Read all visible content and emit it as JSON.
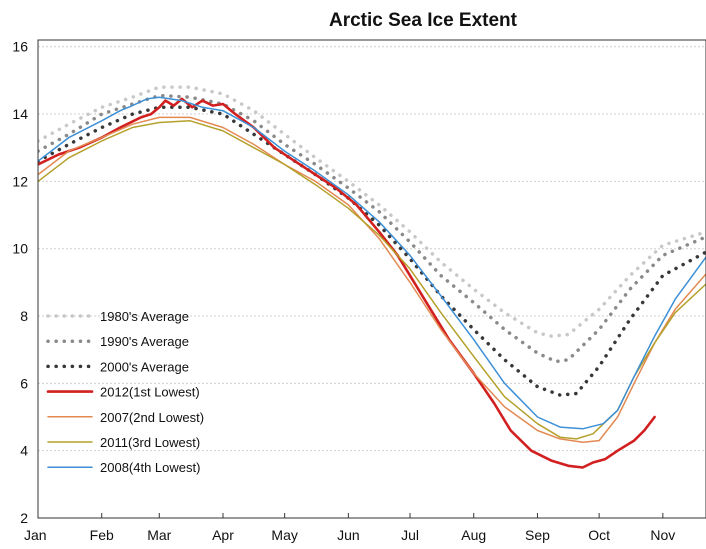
{
  "chart_data": {
    "type": "line",
    "title": "Arctic Sea Ice Extent",
    "xlabel": "",
    "ylabel": "",
    "x_tick_labels": [
      "Jan",
      "Feb",
      "Mar",
      "Apr",
      "May",
      "Jun",
      "Jul",
      "Aug",
      "Sep",
      "Oct",
      "Nov"
    ],
    "y_ticks": [
      2,
      4,
      6,
      8,
      10,
      12,
      14,
      16
    ],
    "ylim": [
      2,
      16.2
    ],
    "xlim_days": [
      0,
      325
    ],
    "grid": "horizontal dotted",
    "legend_position": "bottom-left",
    "series": [
      {
        "name": "1980's Average",
        "color": "#c8c8c8",
        "style": "dotted",
        "width": 3.5,
        "points": [
          [
            0,
            13.2
          ],
          [
            15,
            13.7
          ],
          [
            31,
            14.2
          ],
          [
            46,
            14.5
          ],
          [
            59,
            14.8
          ],
          [
            74,
            14.8
          ],
          [
            90,
            14.6
          ],
          [
            105,
            14.1
          ],
          [
            120,
            13.4
          ],
          [
            135,
            12.7
          ],
          [
            151,
            12.0
          ],
          [
            166,
            11.3
          ],
          [
            181,
            10.5
          ],
          [
            196,
            9.6
          ],
          [
            212,
            8.8
          ],
          [
            227,
            8.1
          ],
          [
            243,
            7.5
          ],
          [
            250,
            7.4
          ],
          [
            258,
            7.45
          ],
          [
            273,
            8.2
          ],
          [
            288,
            9.2
          ],
          [
            304,
            10.1
          ],
          [
            325,
            10.5
          ]
        ]
      },
      {
        "name": "1990's Average",
        "color": "#8a8a8a",
        "style": "dotted",
        "width": 3.5,
        "points": [
          [
            0,
            12.9
          ],
          [
            15,
            13.4
          ],
          [
            31,
            14.0
          ],
          [
            46,
            14.3
          ],
          [
            59,
            14.55
          ],
          [
            74,
            14.5
          ],
          [
            90,
            14.3
          ],
          [
            105,
            13.8
          ],
          [
            120,
            13.1
          ],
          [
            135,
            12.5
          ],
          [
            151,
            11.8
          ],
          [
            166,
            11.1
          ],
          [
            181,
            10.2
          ],
          [
            196,
            9.2
          ],
          [
            212,
            8.4
          ],
          [
            227,
            7.6
          ],
          [
            243,
            6.9
          ],
          [
            252,
            6.65
          ],
          [
            258,
            6.7
          ],
          [
            273,
            7.6
          ],
          [
            288,
            8.8
          ],
          [
            304,
            9.8
          ],
          [
            325,
            10.35
          ]
        ]
      },
      {
        "name": "2000's Average",
        "color": "#383838",
        "style": "dotted",
        "width": 3.5,
        "points": [
          [
            0,
            12.6
          ],
          [
            15,
            13.1
          ],
          [
            31,
            13.6
          ],
          [
            46,
            14.0
          ],
          [
            59,
            14.2
          ],
          [
            74,
            14.2
          ],
          [
            90,
            14.0
          ],
          [
            105,
            13.4
          ],
          [
            120,
            12.8
          ],
          [
            135,
            12.2
          ],
          [
            151,
            11.5
          ],
          [
            166,
            10.7
          ],
          [
            181,
            9.7
          ],
          [
            196,
            8.6
          ],
          [
            212,
            7.6
          ],
          [
            227,
            6.7
          ],
          [
            243,
            5.9
          ],
          [
            254,
            5.65
          ],
          [
            262,
            5.7
          ],
          [
            273,
            6.5
          ],
          [
            288,
            7.9
          ],
          [
            304,
            9.2
          ],
          [
            325,
            9.9
          ]
        ]
      },
      {
        "name": "2012(1st Lowest)",
        "color": "#d21f1f",
        "style": "solid",
        "width": 2.6,
        "points": [
          [
            0,
            12.5
          ],
          [
            10,
            12.8
          ],
          [
            20,
            13.0
          ],
          [
            31,
            13.3
          ],
          [
            40,
            13.6
          ],
          [
            50,
            13.9
          ],
          [
            55,
            14.0
          ],
          [
            59,
            14.2
          ],
          [
            62,
            14.4
          ],
          [
            66,
            14.25
          ],
          [
            70,
            14.45
          ],
          [
            75,
            14.2
          ],
          [
            80,
            14.4
          ],
          [
            85,
            14.25
          ],
          [
            90,
            14.3
          ],
          [
            96,
            14.0
          ],
          [
            105,
            13.6
          ],
          [
            115,
            13.0
          ],
          [
            125,
            12.6
          ],
          [
            135,
            12.2
          ],
          [
            145,
            11.8
          ],
          [
            155,
            11.3
          ],
          [
            166,
            10.5
          ],
          [
            175,
            9.8
          ],
          [
            181,
            9.2
          ],
          [
            190,
            8.3
          ],
          [
            200,
            7.3
          ],
          [
            212,
            6.3
          ],
          [
            222,
            5.4
          ],
          [
            230,
            4.6
          ],
          [
            240,
            4.0
          ],
          [
            250,
            3.7
          ],
          [
            258,
            3.55
          ],
          [
            265,
            3.5
          ],
          [
            270,
            3.65
          ],
          [
            276,
            3.75
          ],
          [
            282,
            4.0
          ],
          [
            290,
            4.3
          ],
          [
            295,
            4.6
          ],
          [
            300,
            5.0
          ]
        ]
      },
      {
        "name": "2007(2nd Lowest)",
        "color": "#e38a52",
        "style": "solid",
        "width": 1.5,
        "points": [
          [
            0,
            12.2
          ],
          [
            15,
            12.9
          ],
          [
            31,
            13.3
          ],
          [
            46,
            13.7
          ],
          [
            59,
            13.9
          ],
          [
            74,
            13.9
          ],
          [
            90,
            13.6
          ],
          [
            105,
            13.1
          ],
          [
            120,
            12.5
          ],
          [
            135,
            12.0
          ],
          [
            151,
            11.3
          ],
          [
            166,
            10.3
          ],
          [
            181,
            9.0
          ],
          [
            196,
            7.6
          ],
          [
            212,
            6.3
          ],
          [
            227,
            5.3
          ],
          [
            243,
            4.6
          ],
          [
            254,
            4.35
          ],
          [
            265,
            4.25
          ],
          [
            273,
            4.3
          ],
          [
            282,
            5.0
          ],
          [
            290,
            6.0
          ],
          [
            300,
            7.2
          ],
          [
            310,
            8.2
          ],
          [
            325,
            9.25
          ]
        ]
      },
      {
        "name": "2011(3rd Lowest)",
        "color": "#b5a02a",
        "style": "solid",
        "width": 1.5,
        "points": [
          [
            0,
            12.0
          ],
          [
            15,
            12.7
          ],
          [
            31,
            13.2
          ],
          [
            46,
            13.6
          ],
          [
            59,
            13.75
          ],
          [
            74,
            13.8
          ],
          [
            90,
            13.5
          ],
          [
            105,
            13.0
          ],
          [
            120,
            12.5
          ],
          [
            135,
            11.9
          ],
          [
            151,
            11.2
          ],
          [
            166,
            10.4
          ],
          [
            181,
            9.4
          ],
          [
            196,
            8.1
          ],
          [
            212,
            6.8
          ],
          [
            227,
            5.6
          ],
          [
            243,
            4.8
          ],
          [
            254,
            4.4
          ],
          [
            262,
            4.35
          ],
          [
            270,
            4.5
          ],
          [
            282,
            5.2
          ],
          [
            290,
            6.2
          ],
          [
            300,
            7.2
          ],
          [
            310,
            8.1
          ],
          [
            325,
            8.95
          ]
        ]
      },
      {
        "name": "2008(4th Lowest)",
        "color": "#3d8fd6",
        "style": "solid",
        "width": 1.5,
        "points": [
          [
            0,
            12.6
          ],
          [
            15,
            13.3
          ],
          [
            31,
            13.8
          ],
          [
            40,
            14.1
          ],
          [
            46,
            14.25
          ],
          [
            53,
            14.45
          ],
          [
            59,
            14.5
          ],
          [
            70,
            14.4
          ],
          [
            80,
            14.2
          ],
          [
            90,
            14.1
          ],
          [
            105,
            13.6
          ],
          [
            120,
            12.9
          ],
          [
            135,
            12.3
          ],
          [
            151,
            11.6
          ],
          [
            166,
            10.8
          ],
          [
            181,
            9.8
          ],
          [
            196,
            8.6
          ],
          [
            212,
            7.3
          ],
          [
            227,
            6.0
          ],
          [
            243,
            5.0
          ],
          [
            254,
            4.7
          ],
          [
            265,
            4.65
          ],
          [
            275,
            4.8
          ],
          [
            282,
            5.2
          ],
          [
            290,
            6.2
          ],
          [
            300,
            7.4
          ],
          [
            310,
            8.5
          ],
          [
            325,
            9.75
          ]
        ]
      }
    ]
  }
}
